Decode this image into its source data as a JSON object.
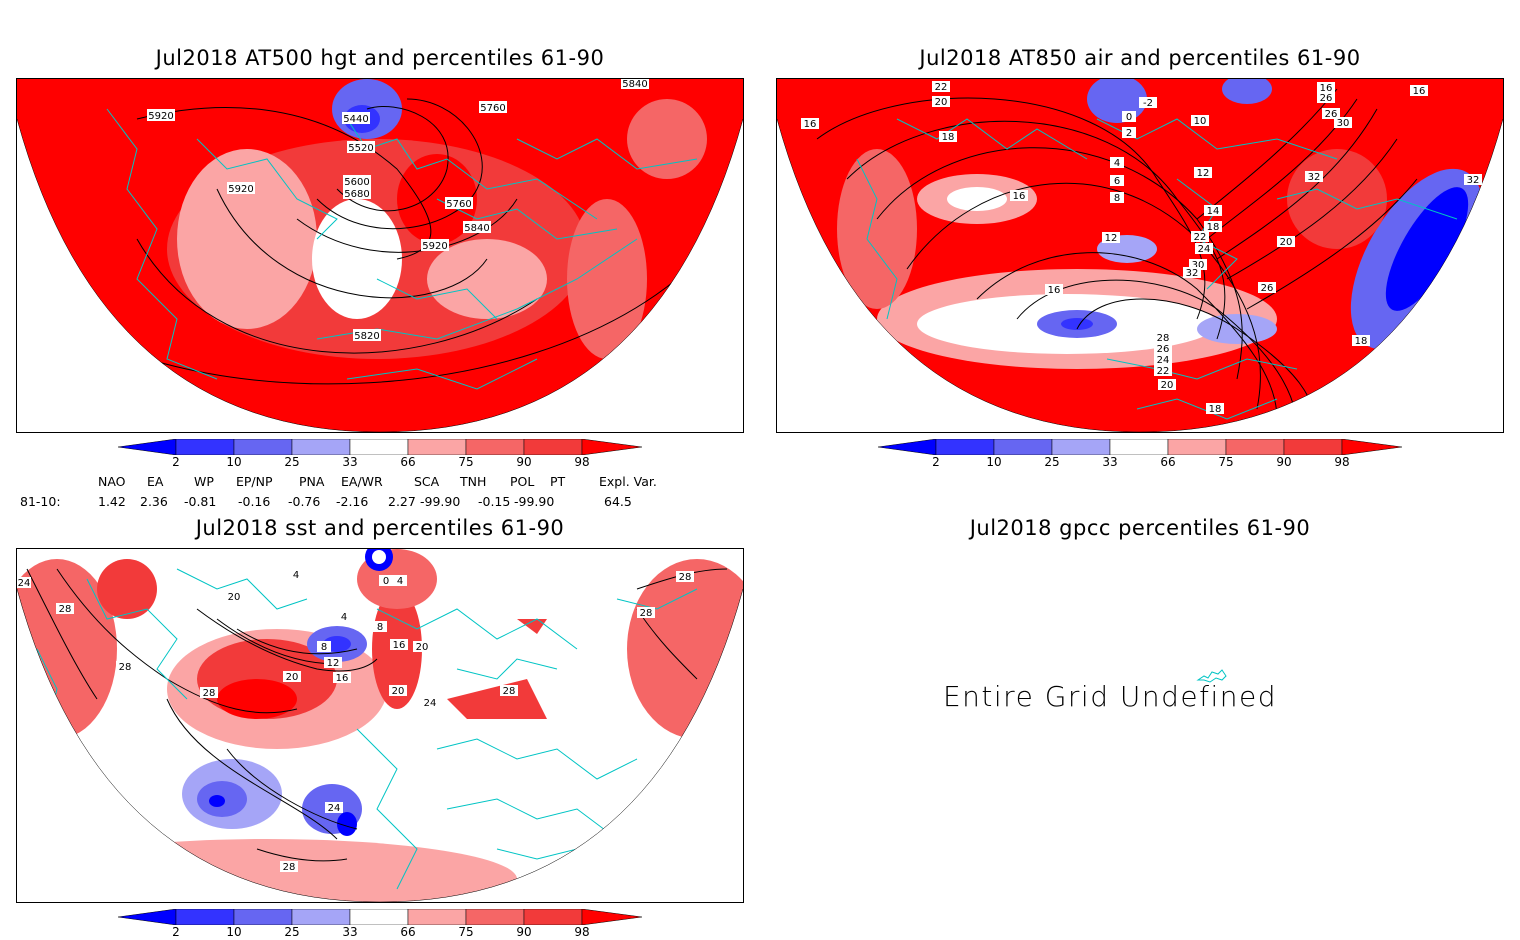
{
  "panels": [
    {
      "title": "Jul2018 AT500 hgt and percentiles 61-90",
      "contour_labels": [
        "5920",
        "5440",
        "5760",
        "5840",
        "5520",
        "5600",
        "5680",
        "5920",
        "5760",
        "5840",
        "5920",
        "5820"
      ]
    },
    {
      "title": "Jul2018 AT850 air and percentiles 61-90",
      "contour_labels": [
        "22",
        "20",
        "18",
        "16",
        "-2",
        "0",
        "2",
        "10",
        "4",
        "6",
        "8",
        "12",
        "16",
        "16",
        "12",
        "14",
        "18",
        "22",
        "24",
        "30",
        "32",
        "26",
        "28",
        "26",
        "24",
        "22",
        "20",
        "18",
        "16",
        "26",
        "26",
        "30",
        "32",
        "32",
        "16",
        "18",
        "20"
      ]
    },
    {
      "title": "Jul2018 sst and percentiles 61-90",
      "contour_labels": [
        "24",
        "28",
        "28",
        "28",
        "20",
        "4",
        "0",
        "4",
        "8",
        "4",
        "12",
        "16",
        "16",
        "8",
        "20",
        "20",
        "24",
        "28",
        "24",
        "28",
        "28",
        "28",
        "20"
      ]
    },
    {
      "title": "Jul2018 gpcc percentiles 61-90",
      "message": "Entire Grid Undefined"
    }
  ],
  "colorbar": {
    "ticks": [
      "2",
      "10",
      "25",
      "33",
      "66",
      "75",
      "90",
      "98"
    ],
    "colors": [
      "#0000ff",
      "#3333ff",
      "#6666f2",
      "#a5a5f7",
      "#ffffff",
      "#fba5a5",
      "#f56666",
      "#f23a3a",
      "#ff0000"
    ]
  },
  "indices": {
    "headers": [
      "NAO",
      "EA",
      "WP",
      "EP/NP",
      "PNA",
      "EA/WR",
      "SCA",
      "TNH",
      "POL",
      "PT",
      "Expl. Var."
    ],
    "row_label": "81-10:",
    "values": [
      "1.42",
      "2.36",
      "-0.81",
      "-0.16",
      "-0.76",
      "-2.16",
      "2.27",
      "-99.90",
      "-0.15",
      "-99.90",
      "64.5"
    ]
  }
}
